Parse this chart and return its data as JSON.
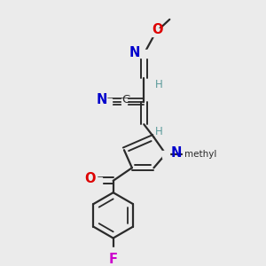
{
  "background_color": "#ebebeb",
  "bond_color": "#2a2a2a",
  "figsize": [
    3.0,
    3.0
  ],
  "dpi": 100,
  "colors": {
    "O": "#dd0000",
    "N": "#0000cc",
    "F": "#cc00cc",
    "C": "#2a2a2a",
    "H": "#5a9a9a",
    "bond": "#2a2a2a"
  }
}
